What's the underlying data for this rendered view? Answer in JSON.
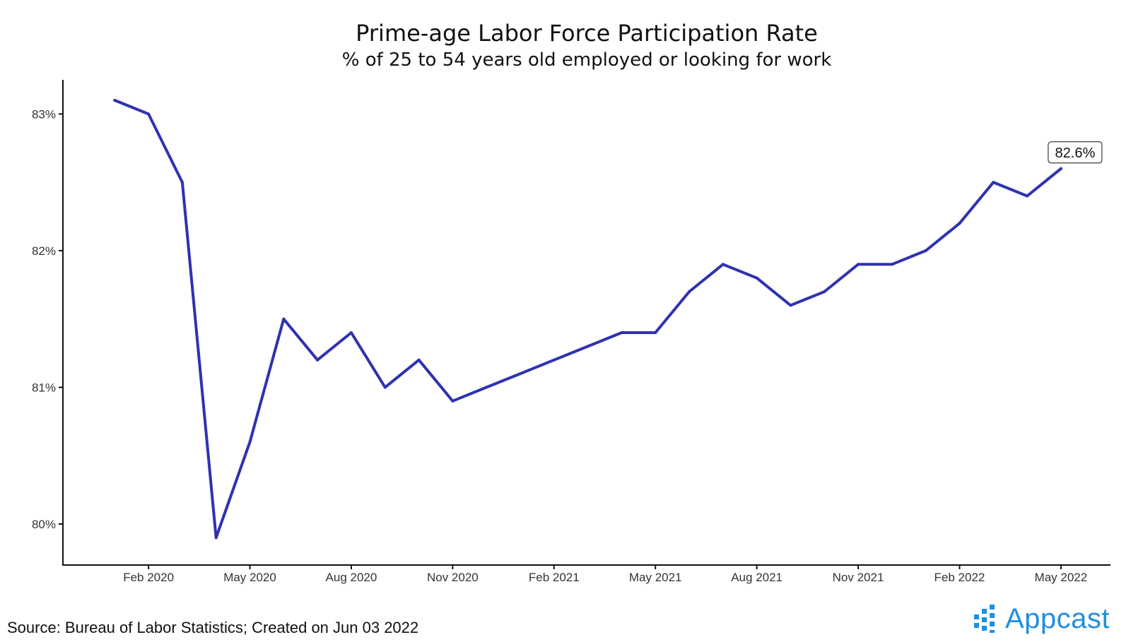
{
  "title": "Prime-age Labor Force Participation Rate",
  "subtitle": "% of 25 to 54 years old employed or looking for work",
  "source": "Source: Bureau of Labor Statistics; Created on Jun 03 2022",
  "logo_text": "Appcast",
  "colors": {
    "line": "#2e32b0",
    "brand": "#1f8fe0",
    "axis": "#111111"
  },
  "chart_data": {
    "type": "line",
    "title": "Prime-age Labor Force Participation Rate",
    "subtitle": "% of 25 to 54 years old employed or looking for work",
    "xlabel": "",
    "ylabel": "",
    "x": [
      "2020-01",
      "2020-02",
      "2020-03",
      "2020-04",
      "2020-05",
      "2020-06",
      "2020-07",
      "2020-08",
      "2020-09",
      "2020-10",
      "2020-11",
      "2020-12",
      "2021-01",
      "2021-02",
      "2021-03",
      "2021-04",
      "2021-05",
      "2021-06",
      "2021-07",
      "2021-08",
      "2021-09",
      "2021-10",
      "2021-11",
      "2021-12",
      "2022-01",
      "2022-02",
      "2022-03",
      "2022-04",
      "2022-05"
    ],
    "series": [
      {
        "values": [
          83.1,
          83.0,
          82.5,
          79.9,
          80.6,
          81.5,
          81.2,
          81.4,
          81.0,
          81.2,
          80.9,
          81.0,
          81.1,
          81.2,
          81.3,
          81.4,
          81.4,
          81.7,
          81.9,
          81.8,
          81.6,
          81.7,
          81.9,
          81.9,
          82.0,
          82.2,
          82.5,
          82.4,
          82.6
        ]
      }
    ],
    "y_ticks": [
      "80%",
      "81%",
      "82%",
      "83%"
    ],
    "y_tick_values": [
      80,
      81,
      82,
      83
    ],
    "x_ticks": [
      "Feb 2020",
      "May 2020",
      "Aug 2020",
      "Nov 2020",
      "Feb 2021",
      "May 2021",
      "Aug 2021",
      "Nov 2021",
      "Feb 2022",
      "May 2022"
    ],
    "x_tick_values": [
      "2020-02",
      "2020-05",
      "2020-08",
      "2020-11",
      "2021-02",
      "2021-05",
      "2021-08",
      "2021-11",
      "2022-02",
      "2022-05"
    ],
    "ylim": [
      79.7,
      83.25
    ],
    "xlim": [
      "2019-11-15",
      "2022-06-15"
    ],
    "end_label": "82.6%",
    "grid": false
  }
}
